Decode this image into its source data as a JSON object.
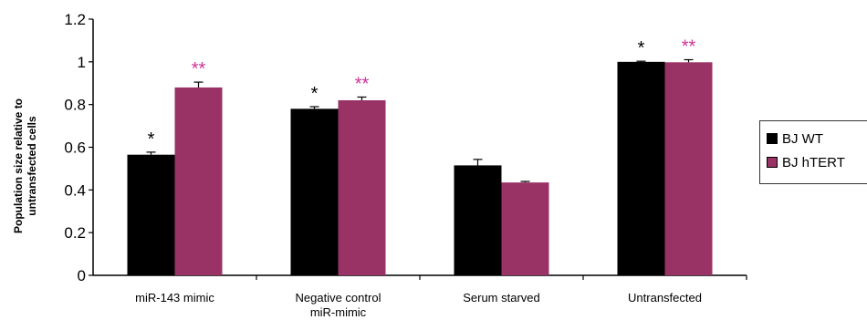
{
  "chart_data": {
    "type": "bar",
    "title": "",
    "ylabel_lines": [
      "Population size relative to",
      "untransfected cells"
    ],
    "xlabel": "",
    "ylim": [
      0,
      1.2
    ],
    "yticks": [
      "0",
      "0.2",
      "0.4",
      "0.6",
      "0.8",
      "1",
      "1.2"
    ],
    "categories": [
      {
        "lines": [
          "miR-143 mimic"
        ]
      },
      {
        "lines": [
          "Negative control",
          "miR-mimic"
        ]
      },
      {
        "lines": [
          "Serum starved"
        ]
      },
      {
        "lines": [
          "Untransfected"
        ]
      }
    ],
    "series": [
      {
        "name": "BJ WT",
        "color": "#000000",
        "values": [
          0.565,
          0.78,
          0.515,
          1.0
        ],
        "errors": [
          0.012,
          0.01,
          0.028,
          0.003
        ],
        "sig": [
          "*",
          "*",
          "",
          "*"
        ],
        "sig_color": "#000000"
      },
      {
        "name": "BJ hTERT",
        "color": "#993366",
        "values": [
          0.88,
          0.82,
          0.435,
          0.998
        ],
        "errors": [
          0.025,
          0.015,
          0.005,
          0.012
        ],
        "sig": [
          "**",
          "**",
          "",
          "**"
        ],
        "sig_color": "#cc3399"
      }
    ],
    "legend_position": "right",
    "grid": false
  }
}
